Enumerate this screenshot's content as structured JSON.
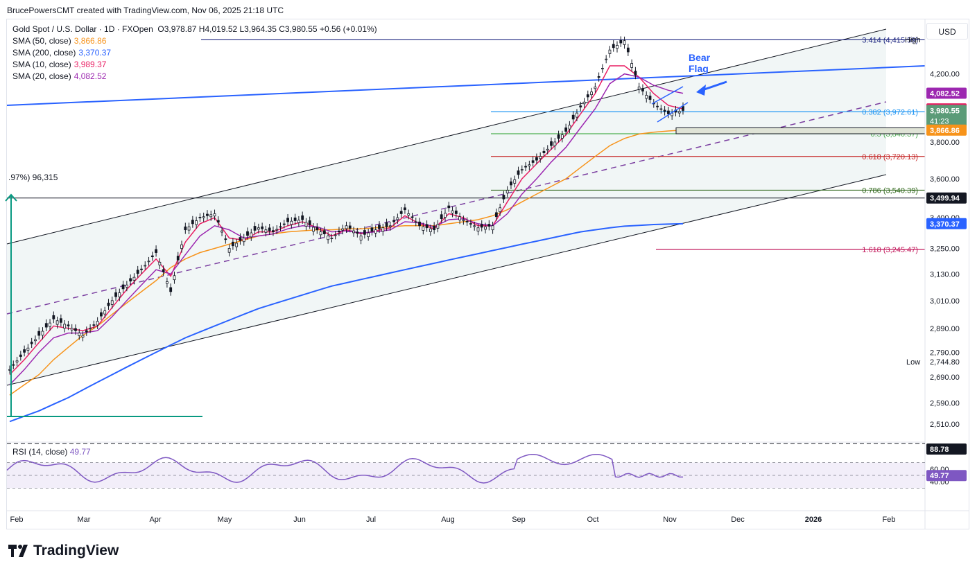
{
  "header": {
    "text": "BrucePowersCMT created with TradingView.com, Nov 06, 2025 21:18 UTC"
  },
  "legend": {
    "title": "Gold Spot / U.S. Dollar · 1D · FXOpen",
    "ohlc": "O3,978.87  H4,019.52  L3,964.35  C3,980.55  +0.56 (+0.01%)",
    "sma": [
      {
        "label": "SMA (50, close)",
        "value": "3,866.86",
        "color": "#f7931a"
      },
      {
        "label": "SMA (200, close)",
        "value": "3,370.37",
        "color": "#2962ff"
      },
      {
        "label": "SMA (10, close)",
        "value": "3,989.37",
        "color": "#e91e63"
      },
      {
        "label": "SMA (20, close)",
        "value": "4,082.52",
        "color": "#9c27b0"
      }
    ]
  },
  "currency": "USD",
  "annotations": {
    "bear_flag": "Bear\nFlag",
    "measure": ".97%) 96,315",
    "high": "High",
    "low": "Low"
  },
  "fib_levels": [
    {
      "label": "3.414 (4,415.59)",
      "value": 4415.59,
      "color": "#1a237e"
    },
    {
      "label": "0.382 (3,972.61)",
      "value": 3972.61,
      "color": "#2196f3"
    },
    {
      "label": "0.5 (3,846.37)",
      "value": 3846.37,
      "color": "#4caf50"
    },
    {
      "label": "0.618 (3,720.13)",
      "value": 3720.13,
      "color": "#c62828"
    },
    {
      "label": "0.786 (3,540.39)",
      "value": 3540.39,
      "color": "#33691e"
    },
    {
      "label": "1.618 (3,245.47)",
      "value": 3245.47,
      "color": "#c2185b"
    }
  ],
  "price_tags": [
    {
      "text": "4,082.52",
      "value": 4082.52,
      "bg": "#9c27b0"
    },
    {
      "text": "3,989.37",
      "value": 3989.37,
      "bg": "#e91e63"
    },
    {
      "text": "3,980.55",
      "value": 3980.55,
      "bg": "#5b9b78",
      "sub": "41:23"
    },
    {
      "text": "3,866.86",
      "value": 3866.86,
      "bg": "#f7931a"
    },
    {
      "text": "3,499.94",
      "value": 3499.94,
      "bg": "#131722"
    },
    {
      "text": "3,370.37",
      "value": 3370.37,
      "bg": "#2962ff"
    }
  ],
  "rsi": {
    "label": "RSI (14, close)",
    "value": "49.77",
    "upper": "88.78",
    "ticks": [
      "60.00",
      "40.00"
    ],
    "current_tag": "49.77"
  },
  "brand": "TradingView",
  "chart_data": {
    "type": "line",
    "title": "Gold Spot / U.S. Dollar · 1D · FXOpen",
    "x_ticks": [
      "Feb",
      "Mar",
      "Apr",
      "May",
      "Jun",
      "Jul",
      "Aug",
      "Sep",
      "Oct",
      "Nov",
      "Dec",
      "2026",
      "Feb"
    ],
    "y_ticks": [
      4200,
      3800,
      3600,
      3400,
      3250,
      3130,
      3010,
      2890,
      2790,
      2690,
      2590,
      2510
    ],
    "y_tick_labels": [
      "4,200.00",
      "3,800.00",
      "3,600.00",
      "3,400.00",
      "3,250.00",
      "3,130.00",
      "3,010.00",
      "2,890.00",
      "2,790.00",
      "2,690.00",
      "2,590.00",
      "2,510.00"
    ],
    "scale": "log",
    "ylim": [
      2450,
      4550
    ],
    "series": [
      {
        "name": "Gold Spot / U.S. Dollar",
        "values": [
          2720,
          2790,
          2860,
          2930,
          2900,
          2860,
          2920,
          3010,
          3080,
          3150,
          3230,
          3050,
          3340,
          3400,
          3420,
          3250,
          3300,
          3350,
          3330,
          3380,
          3390,
          3340,
          3300,
          3360,
          3310,
          3340,
          3360,
          3440,
          3360,
          3340,
          3450,
          3390,
          3350,
          3360,
          3540,
          3650,
          3700,
          3780,
          3860,
          4000,
          4120,
          4350,
          4410,
          4120,
          4020,
          3960,
          3980
        ]
      },
      {
        "name": "SMA (50, close)",
        "values": [
          2620,
          2660,
          2700,
          2760,
          2810,
          2860,
          2900,
          2950,
          3000,
          3050,
          3100,
          3160,
          3200,
          3230,
          3250,
          3270,
          3290,
          3310,
          3320,
          3330,
          3335,
          3340,
          3340,
          3345,
          3345,
          3350,
          3355,
          3360,
          3360,
          3360,
          3370,
          3380,
          3390,
          3410,
          3440,
          3480,
          3520,
          3560,
          3600,
          3660,
          3720,
          3780,
          3820,
          3845,
          3855,
          3862,
          3867
        ]
      },
      {
        "name": "SMA (200, close)",
        "values": [
          2520,
          2540,
          2560,
          2585,
          2610,
          2640,
          2670,
          2700,
          2730,
          2760,
          2790,
          2820,
          2850,
          2875,
          2900,
          2925,
          2950,
          2975,
          2995,
          3015,
          3035,
          3055,
          3075,
          3090,
          3105,
          3120,
          3135,
          3150,
          3165,
          3180,
          3195,
          3210,
          3225,
          3240,
          3255,
          3270,
          3285,
          3300,
          3315,
          3330,
          3340,
          3350,
          3358,
          3362,
          3366,
          3368,
          3370
        ]
      },
      {
        "name": "SMA (10, close)",
        "values": [
          2700,
          2760,
          2830,
          2900,
          2890,
          2880,
          2900,
          2980,
          3060,
          3130,
          3200,
          3120,
          3280,
          3370,
          3400,
          3300,
          3290,
          3330,
          3330,
          3360,
          3380,
          3350,
          3310,
          3340,
          3320,
          3335,
          3350,
          3410,
          3370,
          3345,
          3420,
          3400,
          3360,
          3360,
          3480,
          3600,
          3680,
          3760,
          3840,
          3960,
          4080,
          4250,
          4250,
          4180,
          4080,
          4010,
          3989
        ]
      },
      {
        "name": "SMA (20, close)",
        "values": [
          2660,
          2720,
          2790,
          2850,
          2870,
          2870,
          2880,
          2940,
          3010,
          3080,
          3150,
          3130,
          3220,
          3310,
          3360,
          3340,
          3300,
          3310,
          3320,
          3345,
          3360,
          3355,
          3330,
          3335,
          3325,
          3330,
          3340,
          3380,
          3375,
          3355,
          3390,
          3395,
          3370,
          3360,
          3420,
          3520,
          3600,
          3690,
          3770,
          3880,
          3990,
          4140,
          4200,
          4180,
          4130,
          4100,
          4082
        ]
      }
    ]
  }
}
